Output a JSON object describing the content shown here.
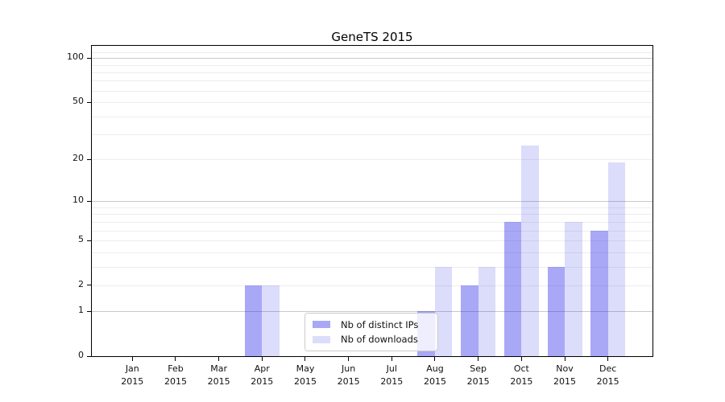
{
  "chart_data": {
    "type": "bar",
    "title": "GeneTS 2015",
    "categories": [
      "Jan 2015",
      "Feb 2015",
      "Mar 2015",
      "Apr 2015",
      "May 2015",
      "Jun 2015",
      "Jul 2015",
      "Aug 2015",
      "Sep 2015",
      "Oct 2015",
      "Nov 2015",
      "Dec 2015"
    ],
    "series": [
      {
        "name": "Nb of distinct IPs",
        "color": "rgba(38,38,232,0.4)",
        "values": [
          0,
          0,
          0,
          2,
          0,
          0,
          0,
          1,
          2,
          7,
          3,
          6
        ]
      },
      {
        "name": "Nb of downloads",
        "color": "rgba(38,38,232,0.16)",
        "values": [
          0,
          0,
          0,
          2,
          0,
          0,
          0,
          3,
          3,
          25,
          7,
          19
        ]
      }
    ],
    "xlabel": "",
    "ylabel": "",
    "yscale": "log1p",
    "ylim": [
      0,
      121
    ],
    "yticks": [
      0,
      1,
      2,
      5,
      10,
      20,
      50,
      100
    ],
    "grid": {
      "major": [
        1,
        10,
        100
      ],
      "minor": [
        2,
        3,
        4,
        5,
        6,
        7,
        8,
        9,
        20,
        30,
        40,
        50,
        60,
        70,
        80,
        90,
        110
      ]
    },
    "legend_position": "lower center inside plot",
    "colors": {
      "grid_minor": "#ededed",
      "grid_major": "#c9c9c9",
      "axis": "#000000",
      "legend_border": "#cccccc",
      "legend_background": "rgba(255,255,255,0.8)"
    }
  }
}
